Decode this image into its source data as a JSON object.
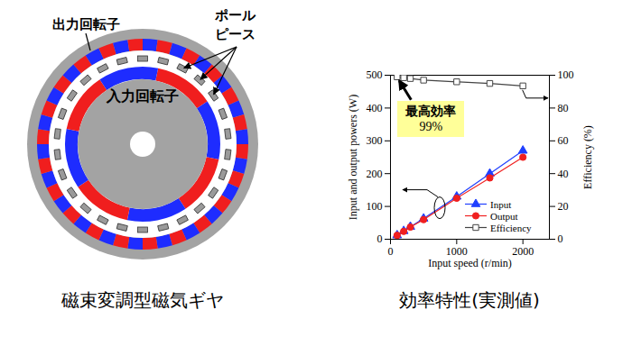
{
  "diagram": {
    "caption": "磁束変調型磁気ギヤ",
    "labels": {
      "output_rotor": "出力回転子",
      "pole_piece": [
        "ポール",
        "ピース"
      ],
      "input_rotor": "入力回転子"
    }
  },
  "chart_data": {
    "type": "line",
    "caption": "効率特性(実測値)",
    "x_label": "Input speed (r/min)",
    "y_label": "Input and output powers (W)",
    "y2_label": "Efficiency (%)",
    "x": [
      100,
      200,
      300,
      500,
      1000,
      1500,
      2000
    ],
    "series": [
      {
        "name": "Input",
        "color": "#1f3fff",
        "marker": "triangle",
        "values": [
          12,
          25,
          38,
          63,
          130,
          200,
          270
        ]
      },
      {
        "name": "Output",
        "color": "#f02020",
        "marker": "circle",
        "values": [
          12,
          24,
          37,
          60,
          125,
          187,
          250
        ]
      },
      {
        "name": "Efficiency",
        "color": "#444444",
        "marker": "open square",
        "axis": "y2",
        "values": [
          99,
          98.5,
          98,
          97,
          96,
          95,
          93.5
        ]
      }
    ],
    "xlim": [
      0,
      2400
    ],
    "xticks": [
      0,
      1000,
      2000
    ],
    "ylim": [
      0,
      500
    ],
    "yticks": [
      0,
      100,
      200,
      300,
      400,
      500
    ],
    "y2lim": [
      0,
      100
    ],
    "y2ticks": [
      0,
      20,
      40,
      60,
      80,
      100
    ],
    "legend": "bottom-right",
    "annotation": {
      "text": [
        "最高効率",
        "99%"
      ]
    }
  }
}
